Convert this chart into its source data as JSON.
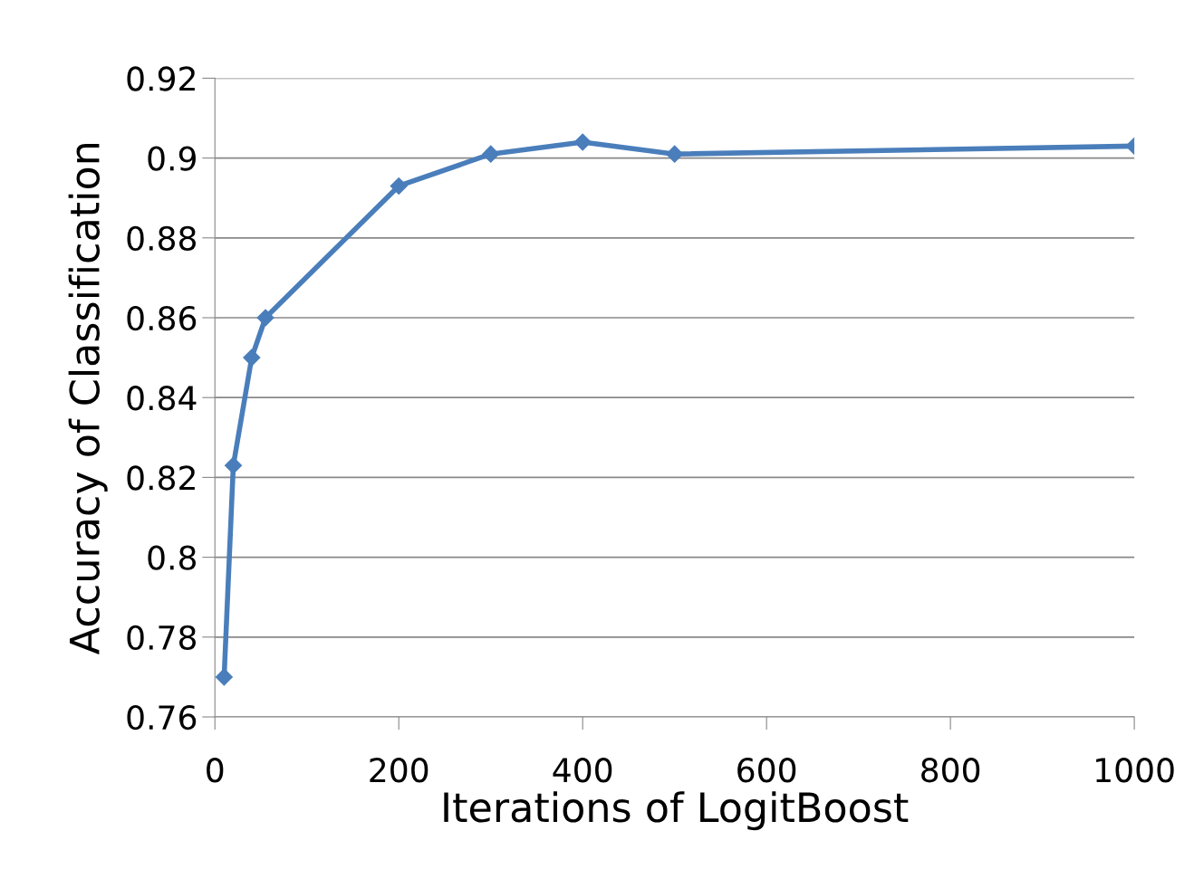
{
  "chart_data": {
    "type": "line",
    "xlabel": "Iterations of LogitBoost",
    "ylabel": "Accuracy of Classification",
    "x": [
      10,
      20,
      40,
      55,
      200,
      300,
      400,
      500,
      1000
    ],
    "series": [
      {
        "color": "#4a7ebb",
        "values": [
          0.77,
          0.823,
          0.85,
          0.86,
          0.893,
          0.901,
          0.904,
          0.901,
          0.903
        ]
      }
    ],
    "xlim": [
      0,
      1000
    ],
    "xticks": [
      0,
      200,
      400,
      600,
      800,
      1000
    ],
    "ylim": [
      0.76,
      0.92
    ],
    "yticks": [
      0.76,
      0.78,
      {
        "value": 0.8,
        "label": "0.8"
      },
      0.82,
      0.84,
      0.86,
      0.88,
      {
        "value": 0.9,
        "label": "0.9"
      },
      0.92
    ],
    "grid": "y",
    "marker": "diamond",
    "line_style": "solid"
  }
}
